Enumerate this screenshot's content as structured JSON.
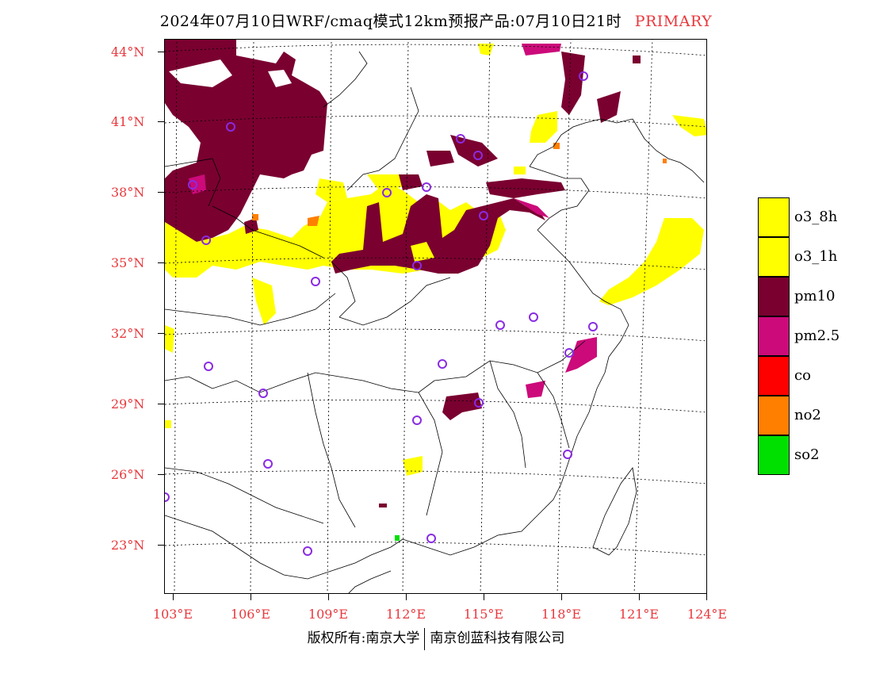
{
  "title": {
    "text": "2024年07月10日WRF/cmaq模式12km预报产品:07月10日21时",
    "tag": "PRIMARY"
  },
  "colors": {
    "label_red": "#e8383d",
    "o3_8h": "#ffff00",
    "o3_1h": "#ffff00",
    "pm10": "#7a0030",
    "pm25": "#cc0a7a",
    "co": "#ff0000",
    "no2": "#ff7f00",
    "so2": "#00e000",
    "station": "#8a2be2"
  },
  "latitude_labels": [
    "44°N",
    "41°N",
    "38°N",
    "35°N",
    "32°N",
    "29°N",
    "26°N",
    "23°N"
  ],
  "longitude_labels": [
    "103°E",
    "106°E",
    "109°E",
    "112°E",
    "115°E",
    "118°E",
    "121°E",
    "124°E"
  ],
  "legend": [
    {
      "label": "o3_8h",
      "color": "#ffff00"
    },
    {
      "label": "o3_1h",
      "color": "#ffff00"
    },
    {
      "label": "pm10",
      "color": "#7a0030"
    },
    {
      "label": "pm2.5",
      "color": "#cc0a7a"
    },
    {
      "label": "co",
      "color": "#ff0000"
    },
    {
      "label": "no2",
      "color": "#ff7f00"
    },
    {
      "label": "so2",
      "color": "#00e000"
    }
  ],
  "footer": {
    "left": "版权所有:南京大学",
    "right": "南京创蓝科技有限公司"
  }
}
